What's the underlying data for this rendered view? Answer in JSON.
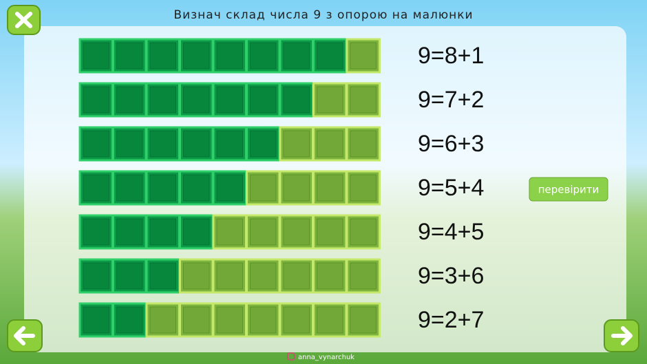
{
  "header": {
    "title": "Визнач склад числа 9 з опорою на малюнки"
  },
  "rows": [
    {
      "dark": 8,
      "light": 1,
      "equation": "9=8+1"
    },
    {
      "dark": 7,
      "light": 2,
      "equation": "9=7+2"
    },
    {
      "dark": 6,
      "light": 3,
      "equation": "9=6+3"
    },
    {
      "dark": 5,
      "light": 4,
      "equation": "9=5+4"
    },
    {
      "dark": 4,
      "light": 5,
      "equation": "9=4+5"
    },
    {
      "dark": 3,
      "light": 6,
      "equation": "9=3+6"
    },
    {
      "dark": 2,
      "light": 7,
      "equation": "9=2+7"
    }
  ],
  "check_button": "перевірити",
  "footer": "anna_vynarchuk"
}
